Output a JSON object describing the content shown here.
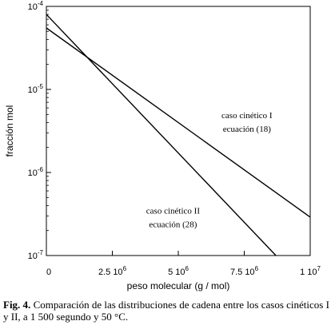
{
  "caption": {
    "label": "Fig. 4.",
    "text": "Comparación de las distribuciones de cadena entre los casos cinéticos I y II, a 1 500 segundo y 50 °C."
  },
  "chart_data": {
    "type": "line",
    "xlabel": "peso molecular (g / mol)",
    "ylabel": "fracción mol",
    "xlim": [
      0,
      10000000
    ],
    "ylim": [
      1e-07,
      0.0001
    ],
    "yscale": "log",
    "grid": false,
    "x_ticks": [
      {
        "value": 0,
        "label": "0"
      },
      {
        "value": 2500000,
        "label": "2.5 10",
        "exp": "6"
      },
      {
        "value": 5000000,
        "label": "5 10",
        "exp": "6"
      },
      {
        "value": 7500000,
        "label": "7.5 10",
        "exp": "6"
      },
      {
        "value": 10000000,
        "label": "1 10",
        "exp": "7"
      }
    ],
    "y_ticks": [
      {
        "value": 1e-07,
        "label": "10",
        "exp": "-7"
      },
      {
        "value": 1e-06,
        "label": "10",
        "exp": "-6"
      },
      {
        "value": 1e-05,
        "label": "10",
        "exp": "-5"
      },
      {
        "value": 0.0001,
        "label": "10",
        "exp": "-4"
      }
    ],
    "series": [
      {
        "name": "caso cinético I",
        "x": [
          0,
          10000000
        ],
        "y": [
          5.5e-05,
          2.9e-07
        ]
      },
      {
        "name": "caso cinético II",
        "x": [
          0,
          8700000
        ],
        "y": [
          8e-05,
          1e-07
        ]
      }
    ],
    "annotations": [
      {
        "lines": [
          "caso cinético I",
          "ecuación (18)"
        ],
        "x": 7600000,
        "y": 4.5e-06
      },
      {
        "lines": [
          "caso cinético II",
          "ecuación (28)"
        ],
        "x": 4800000,
        "y": 3.2e-07
      }
    ]
  }
}
